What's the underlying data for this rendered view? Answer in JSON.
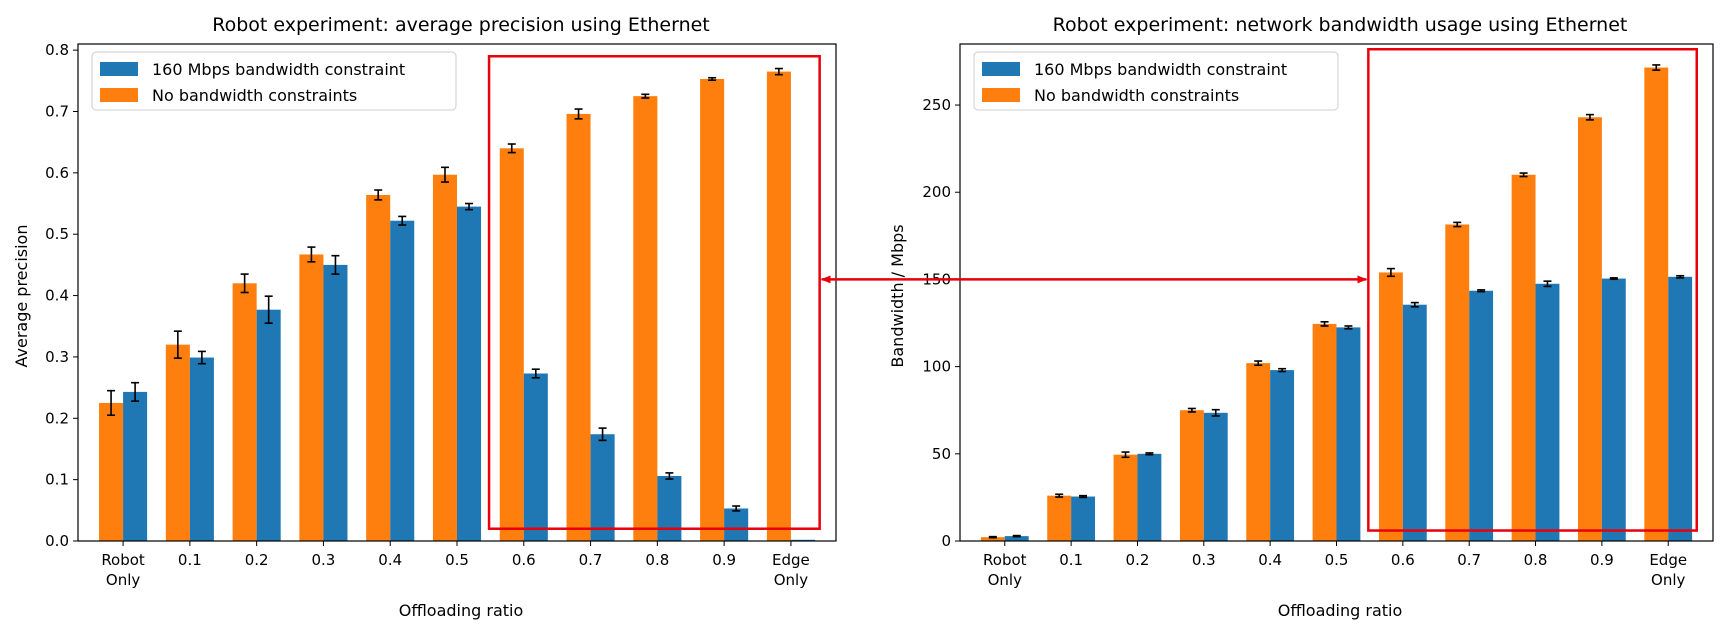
{
  "colors": {
    "no_constraint": "#ff7f0e",
    "constrained": "#1f77b4",
    "highlight": "#e8000b",
    "axis": "#000000"
  },
  "chart_data": [
    {
      "type": "bar",
      "title": "Robot experiment: average precision using Ethernet",
      "xlabel": "Offloading ratio",
      "ylabel": "Average precision",
      "categories": [
        "Robot\nOnly",
        "0.1",
        "0.2",
        "0.3",
        "0.4",
        "0.5",
        "0.6",
        "0.7",
        "0.8",
        "0.9",
        "Edge\nOnly"
      ],
      "ylim": [
        0,
        0.81
      ],
      "yticks": [
        0.0,
        0.1,
        0.2,
        0.3,
        0.4,
        0.5,
        0.6,
        0.7,
        0.8
      ],
      "ytick_labels": [
        "0.0",
        "0.1",
        "0.2",
        "0.3",
        "0.4",
        "0.5",
        "0.6",
        "0.7",
        "0.8"
      ],
      "legend_position": "top-left",
      "grid": false,
      "series": [
        {
          "name": "No bandwidth constraints",
          "color_key": "no_constraint",
          "legend_order": 2,
          "values": [
            0.225,
            0.32,
            0.42,
            0.467,
            0.564,
            0.597,
            0.64,
            0.696,
            0.725,
            0.753,
            0.765
          ],
          "errors": [
            0.02,
            0.022,
            0.015,
            0.012,
            0.008,
            0.012,
            0.007,
            0.008,
            0.003,
            0.002,
            0.005
          ]
        },
        {
          "name": "160 Mbps bandwidth constraint",
          "color_key": "constrained",
          "legend_order": 1,
          "values": [
            0.243,
            0.299,
            0.377,
            0.45,
            0.522,
            0.545,
            0.273,
            0.174,
            0.106,
            0.053,
            0.002
          ],
          "errors": [
            0.015,
            0.01,
            0.022,
            0.015,
            0.007,
            0.005,
            0.007,
            0.01,
            0.005,
            0.004,
            0.0
          ]
        }
      ],
      "highlight_box": {
        "from_category": 6,
        "to_category": 10,
        "y_from": 0.02,
        "y_to": 0.79
      }
    },
    {
      "type": "bar",
      "title": "Robot experiment: network bandwidth usage using Ethernet",
      "xlabel": "Offloading ratio",
      "ylabel": "Bandwidth / Mbps",
      "categories": [
        "Robot\nOnly",
        "0.1",
        "0.2",
        "0.3",
        "0.4",
        "0.5",
        "0.6",
        "0.7",
        "0.8",
        "0.9",
        "Edge\nOnly"
      ],
      "ylim": [
        0,
        285
      ],
      "yticks": [
        0,
        50,
        100,
        150,
        200,
        250
      ],
      "ytick_labels": [
        "0",
        "50",
        "100",
        "150",
        "200",
        "250"
      ],
      "legend_position": "top-left",
      "grid": false,
      "series": [
        {
          "name": "No bandwidth constraints",
          "color_key": "no_constraint",
          "legend_order": 2,
          "values": [
            2.2,
            26.0,
            49.5,
            75.0,
            102.0,
            124.5,
            154.0,
            181.5,
            210.0,
            243.0,
            271.5
          ],
          "errors": [
            0.3,
            0.8,
            1.5,
            1.0,
            1.2,
            1.2,
            2.2,
            1.2,
            1.0,
            1.5,
            1.5
          ]
        },
        {
          "name": "160 Mbps bandwidth constraint",
          "color_key": "constrained",
          "legend_order": 1,
          "values": [
            2.8,
            25.5,
            50.0,
            73.5,
            98.0,
            122.5,
            135.5,
            143.5,
            147.5,
            150.5,
            151.5
          ],
          "errors": [
            0.3,
            0.5,
            0.5,
            1.8,
            0.8,
            0.8,
            1.2,
            0.5,
            1.5,
            0.4,
            0.6
          ]
        }
      ],
      "highlight_box": {
        "from_category": 6,
        "to_category": 10,
        "y_from": 6,
        "y_to": 282
      }
    }
  ],
  "connector": {
    "type": "double-arrow",
    "value_in_right_chart": 150
  }
}
